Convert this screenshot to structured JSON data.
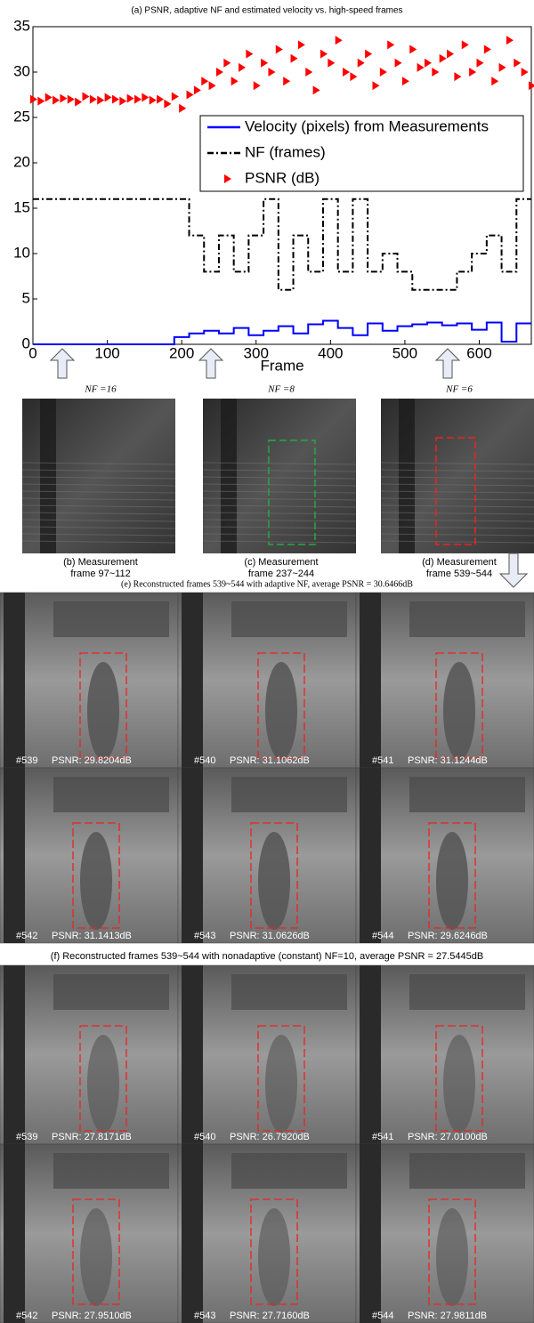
{
  "chart_data": {
    "type": "line",
    "title": "(a) PSNR,  adaptive NF and estimated velocity vs. high-speed frames",
    "x_label": "Frame",
    "xlim": [
      0,
      670
    ],
    "xticks": [
      0,
      100,
      200,
      300,
      400,
      500,
      600
    ],
    "ylim": [
      0,
      35
    ],
    "yticks": [
      0,
      5,
      10,
      15,
      20,
      25,
      30,
      35
    ],
    "legend": "upper right",
    "series": [
      {
        "name": "Velocity (pixels) from Measurements",
        "color": "#0000ff",
        "style": "solid",
        "x": [
          0,
          190,
          190,
          210,
          210,
          230,
          230,
          250,
          250,
          270,
          270,
          290,
          290,
          310,
          310,
          330,
          330,
          350,
          350,
          370,
          370,
          390,
          390,
          410,
          410,
          430,
          430,
          450,
          450,
          470,
          470,
          490,
          490,
          510,
          510,
          530,
          530,
          550,
          550,
          570,
          570,
          590,
          590,
          610,
          610,
          630,
          630,
          650,
          650,
          670
        ],
        "values": [
          0,
          0,
          0.8,
          0.8,
          1.2,
          1.2,
          1.5,
          1.5,
          1.2,
          1.2,
          1.8,
          1.8,
          1.0,
          1.0,
          1.5,
          1.5,
          2.0,
          2.0,
          1.2,
          1.2,
          2.2,
          2.2,
          2.6,
          2.6,
          1.8,
          1.8,
          1.0,
          1.0,
          2.3,
          2.3,
          1.5,
          1.5,
          2.0,
          2.0,
          2.2,
          2.2,
          2.4,
          2.4,
          2.1,
          2.1,
          2.3,
          2.3,
          1.6,
          1.6,
          2.4,
          2.4,
          0.3,
          0.3,
          2.3,
          2.3
        ]
      },
      {
        "name": "NF (frames)",
        "color": "#000000",
        "style": "dashdot",
        "x": [
          0,
          190,
          190,
          210,
          210,
          230,
          230,
          250,
          250,
          270,
          270,
          290,
          290,
          310,
          310,
          330,
          330,
          350,
          350,
          370,
          370,
          390,
          390,
          410,
          410,
          430,
          430,
          450,
          450,
          470,
          470,
          490,
          490,
          510,
          510,
          530,
          530,
          550,
          550,
          570,
          570,
          590,
          590,
          610,
          610,
          630,
          630,
          650,
          650,
          670
        ],
        "values": [
          16,
          16,
          16,
          16,
          12,
          12,
          8,
          8,
          12,
          12,
          8,
          8,
          12,
          12,
          16,
          16,
          6,
          6,
          12,
          12,
          8,
          8,
          16,
          16,
          8,
          8,
          16,
          16,
          8,
          8,
          10,
          10,
          8,
          8,
          6,
          6,
          6,
          6,
          6,
          6,
          8,
          8,
          10,
          10,
          12,
          12,
          8,
          8,
          16,
          16
        ]
      },
      {
        "name": "PSNR (dB)",
        "color": "#ff0000",
        "style": "marker",
        "x": [
          0,
          10,
          20,
          30,
          40,
          50,
          60,
          70,
          80,
          90,
          100,
          110,
          120,
          130,
          140,
          150,
          160,
          170,
          180,
          190,
          200,
          210,
          220,
          230,
          240,
          250,
          260,
          270,
          280,
          290,
          300,
          310,
          320,
          330,
          340,
          350,
          360,
          370,
          380,
          390,
          400,
          410,
          420,
          430,
          440,
          450,
          460,
          470,
          480,
          490,
          500,
          510,
          520,
          530,
          540,
          550,
          560,
          570,
          580,
          590,
          600,
          610,
          620,
          630,
          640,
          650,
          660,
          670
        ],
        "values": [
          27,
          26.8,
          27.2,
          26.9,
          27.1,
          27,
          26.7,
          27.3,
          27,
          26.9,
          27.2,
          27,
          26.8,
          27.1,
          27,
          27.2,
          26.9,
          27,
          26.5,
          27.3,
          26,
          27.5,
          28,
          29,
          28.5,
          30,
          31,
          29,
          30.5,
          32,
          28.5,
          31,
          30,
          32.5,
          29,
          31.5,
          33,
          30,
          28,
          32,
          31,
          33.5,
          30,
          29.5,
          31,
          32,
          28.5,
          30,
          33,
          31,
          29,
          32.5,
          30.5,
          31,
          30,
          31.5,
          32,
          29.5,
          33,
          30,
          31,
          32.5,
          29,
          30.5,
          33.5,
          31,
          30,
          28.5
        ]
      }
    ]
  },
  "measurements": [
    {
      "nf": "NF =16",
      "caption": [
        "(b) Measurement",
        "frame 97~112"
      ]
    },
    {
      "nf": "NF =8",
      "caption": [
        "(c) Measurement",
        "frame 237~244"
      ]
    },
    {
      "nf": "NF =6",
      "caption": [
        "(d) Measurement",
        "frame 539~544"
      ]
    }
  ],
  "reconstructions": [
    {
      "title": "(e) Reconstructed frames 539~544 with adaptive NF, average PSNR = 30.6466dB",
      "frames": [
        [
          "#539",
          "PSNR: 29.8204dB"
        ],
        [
          "#540",
          "PSNR: 31.1062dB"
        ],
        [
          "#541",
          "PSNR: 31.1244dB"
        ],
        [
          "#542",
          "PSNR: 31.1413dB"
        ],
        [
          "#543",
          "PSNR:  31.0626dB"
        ],
        [
          "#544",
          "PSNR: 29.6246dB"
        ]
      ]
    },
    {
      "title": "(f) Reconstructed frames 539~544 with nonadaptive (constant) NF=10, average PSNR = 27.5445dB",
      "frames": [
        [
          "#539",
          "PSNR: 27.8171dB"
        ],
        [
          "#540",
          "PSNR: 26.7920dB"
        ],
        [
          "#541",
          "PSNR: 27.0100dB"
        ],
        [
          "#542",
          "PSNR: 27.9510dB"
        ],
        [
          "#543",
          "PSNR: 27.7160dB"
        ],
        [
          "#544",
          "PSNR: 27.9811dB"
        ]
      ]
    }
  ]
}
